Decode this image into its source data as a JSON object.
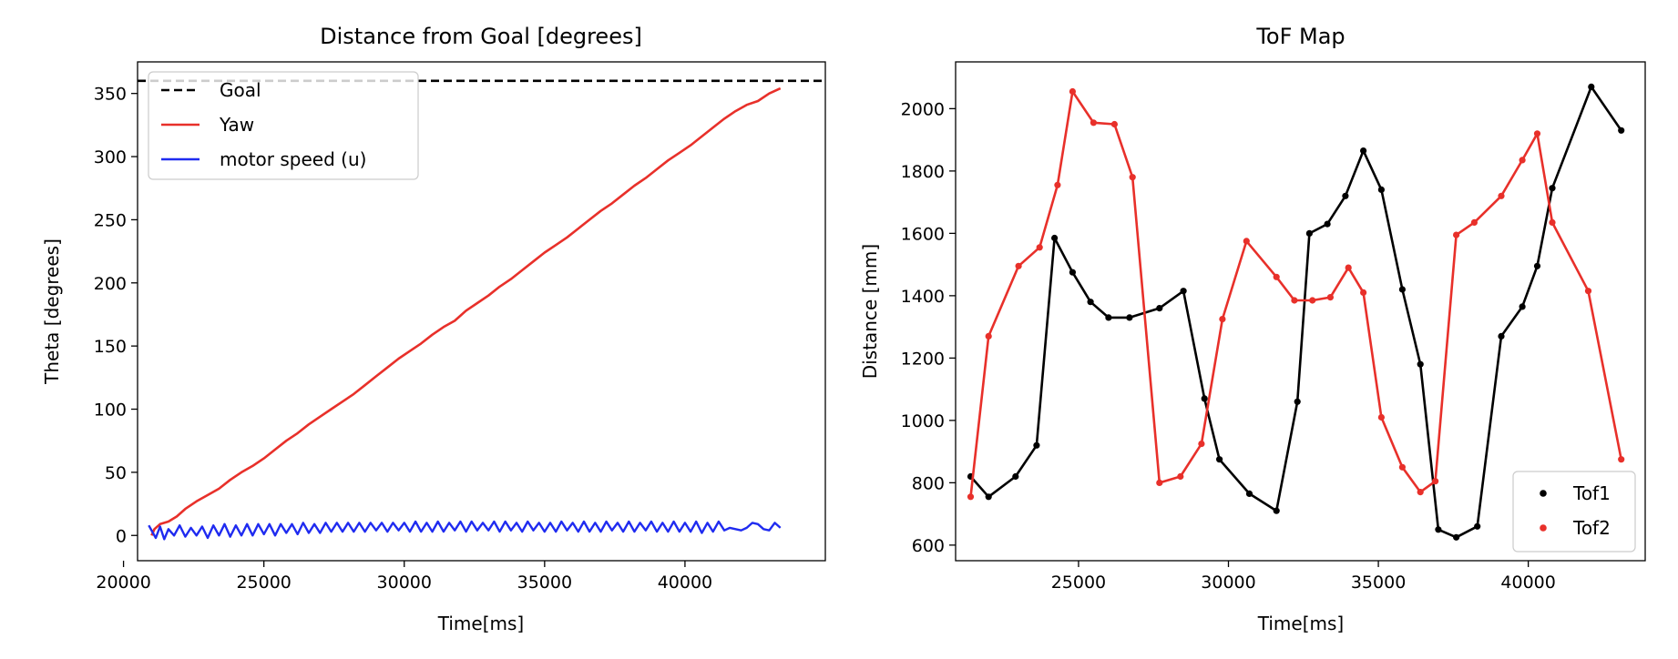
{
  "chart_data": [
    {
      "type": "line",
      "title": "Distance from Goal [degrees]",
      "xlabel": "Time[ms]",
      "ylabel": "Theta [degrees]",
      "xlim": [
        20500,
        45000
      ],
      "ylim": [
        -20,
        375
      ],
      "xticks": [
        20000,
        25000,
        30000,
        35000,
        40000
      ],
      "yticks": [
        0,
        50,
        100,
        150,
        200,
        250,
        300,
        350
      ],
      "grid": false,
      "legend": "top-left",
      "series": [
        {
          "name": "Goal",
          "style": "dashed",
          "color": "#000000",
          "x": [
            20500,
            45000
          ],
          "y": [
            360,
            360
          ]
        },
        {
          "name": "Yaw",
          "style": "solid",
          "color": "#e8302a",
          "x": [
            21000,
            21100,
            21300,
            21600,
            21900,
            22200,
            22600,
            23000,
            23400,
            23800,
            24200,
            24600,
            25000,
            25400,
            25800,
            26200,
            26600,
            27000,
            27400,
            27800,
            28200,
            28600,
            29000,
            29400,
            29800,
            30200,
            30600,
            31000,
            31400,
            31800,
            32200,
            32600,
            33000,
            33400,
            33800,
            34200,
            34600,
            35000,
            35400,
            35800,
            36200,
            36600,
            37000,
            37400,
            37800,
            38200,
            38600,
            39000,
            39400,
            39800,
            40200,
            40600,
            41000,
            41400,
            41800,
            42200,
            42600,
            43000,
            43400
          ],
          "y": [
            0,
            5,
            9,
            11,
            15,
            21,
            27,
            32,
            37,
            44,
            50,
            55,
            61,
            68,
            75,
            81,
            88,
            94,
            100,
            106,
            112,
            119,
            126,
            133,
            140,
            146,
            152,
            159,
            165,
            170,
            178,
            184,
            190,
            197,
            203,
            210,
            217,
            224,
            230,
            236,
            243,
            250,
            257,
            263,
            270,
            277,
            283,
            290,
            297,
            303,
            309,
            316,
            323,
            330,
            336,
            341,
            344,
            350,
            354
          ]
        },
        {
          "name": "motor speed (u)",
          "style": "solid",
          "color": "#1f2bf0",
          "x": [
            20900,
            21150,
            21300,
            21450,
            21600,
            21800,
            22000,
            22200,
            22400,
            22600,
            22800,
            23000,
            23200,
            23400,
            23600,
            23800,
            24000,
            24200,
            24400,
            24600,
            24800,
            25000,
            25200,
            25400,
            25600,
            25800,
            26000,
            26200,
            26400,
            26600,
            26800,
            27000,
            27200,
            27400,
            27600,
            27800,
            28000,
            28200,
            28400,
            28600,
            28800,
            29000,
            29200,
            29400,
            29600,
            29800,
            30000,
            30200,
            30400,
            30600,
            30800,
            31000,
            31200,
            31400,
            31600,
            31800,
            32000,
            32200,
            32400,
            32600,
            32800,
            33000,
            33200,
            33400,
            33600,
            33800,
            34000,
            34200,
            34400,
            34600,
            34800,
            35000,
            35200,
            35400,
            35600,
            35800,
            36000,
            36200,
            36400,
            36600,
            36800,
            37000,
            37200,
            37400,
            37600,
            37800,
            38000,
            38200,
            38400,
            38600,
            38800,
            39000,
            39200,
            39400,
            39600,
            39800,
            40000,
            40200,
            40400,
            40600,
            40800,
            41000,
            41200,
            41400,
            41600,
            41800,
            42000,
            42200,
            42400,
            42600,
            42800,
            43000,
            43200,
            43400
          ],
          "y": [
            8,
            -2,
            7,
            -3,
            5,
            0,
            8,
            -1,
            6,
            0,
            7,
            -2,
            8,
            0,
            9,
            -1,
            8,
            0,
            9,
            0,
            9,
            1,
            9,
            0,
            9,
            2,
            9,
            1,
            10,
            2,
            9,
            2,
            10,
            3,
            10,
            3,
            10,
            3,
            10,
            3,
            10,
            4,
            10,
            3,
            10,
            4,
            10,
            3,
            11,
            3,
            10,
            3,
            11,
            3,
            10,
            4,
            11,
            3,
            11,
            4,
            10,
            4,
            11,
            3,
            11,
            4,
            10,
            3,
            11,
            4,
            10,
            3,
            10,
            3,
            11,
            4,
            10,
            3,
            11,
            3,
            10,
            3,
            11,
            4,
            10,
            3,
            11,
            3,
            10,
            4,
            11,
            3,
            10,
            3,
            11,
            3,
            10,
            3,
            11,
            2,
            10,
            3,
            11,
            4,
            6,
            5,
            4,
            6,
            10,
            9,
            5,
            4,
            10,
            6
          ]
        }
      ]
    },
    {
      "type": "line",
      "title": "ToF Map",
      "xlabel": "Time[ms]",
      "ylabel": "Distance [mm]",
      "xlim": [
        20900,
        43900
      ],
      "ylim": [
        550,
        2150
      ],
      "xticks": [
        25000,
        30000,
        35000,
        40000
      ],
      "yticks": [
        600,
        800,
        1000,
        1200,
        1400,
        1600,
        1800,
        2000
      ],
      "grid": false,
      "legend": "bottom-right",
      "series": [
        {
          "name": "Tof1",
          "color": "#000000",
          "x": [
            21400,
            22000,
            22900,
            23600,
            24200,
            24800,
            25400,
            26000,
            26700,
            27700,
            28500,
            29200,
            29700,
            30700,
            31600,
            32300,
            32700,
            33300,
            33900,
            34500,
            35100,
            35800,
            36400,
            37000,
            37600,
            38300,
            39100,
            39800,
            40300,
            40800,
            42100,
            43100
          ],
          "y": [
            820,
            755,
            820,
            920,
            1585,
            1475,
            1380,
            1330,
            1330,
            1360,
            1415,
            1070,
            875,
            765,
            710,
            1060,
            1600,
            1630,
            1720,
            1865,
            1740,
            1420,
            1180,
            650,
            625,
            660,
            1270,
            1365,
            1495,
            1745,
            2070,
            1930
          ]
        },
        {
          "name": "Tof2",
          "color": "#e8302a",
          "x": [
            21400,
            22000,
            23000,
            23700,
            24300,
            24800,
            25500,
            26200,
            26800,
            27700,
            28400,
            29100,
            29800,
            30600,
            31600,
            32200,
            32800,
            33400,
            34000,
            34500,
            35100,
            35800,
            36400,
            36900,
            37600,
            38200,
            39100,
            39800,
            40300,
            40800,
            42000,
            43100
          ],
          "y": [
            755,
            1270,
            1495,
            1555,
            1755,
            2055,
            1955,
            1950,
            1780,
            800,
            820,
            925,
            1325,
            1575,
            1460,
            1385,
            1385,
            1395,
            1490,
            1410,
            1010,
            850,
            770,
            805,
            1595,
            1635,
            1720,
            1835,
            1920,
            1635,
            1415,
            875
          ]
        }
      ]
    }
  ]
}
